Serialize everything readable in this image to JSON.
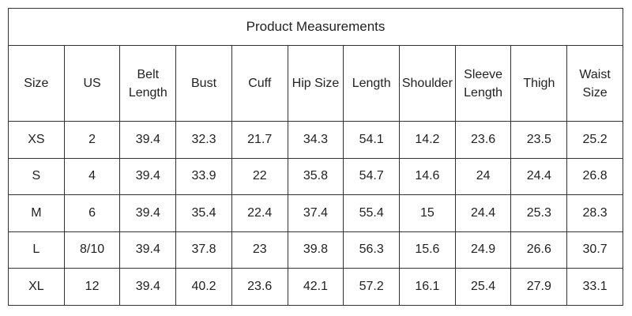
{
  "table": {
    "title": "Product Measurements",
    "columns": [
      "Size",
      "US",
      "Belt Length",
      "Bust",
      "Cuff",
      "Hip Size",
      "Length",
      "Shoulder",
      "Sleeve Length",
      "Thigh",
      "Waist Size"
    ],
    "rows": [
      [
        "XS",
        2,
        39.4,
        32.3,
        21.7,
        34.3,
        54.1,
        14.2,
        23.6,
        23.5,
        25.2
      ],
      [
        "S",
        4,
        39.4,
        33.9,
        22,
        35.8,
        54.7,
        14.6,
        24,
        24.4,
        26.8
      ],
      [
        "M",
        6,
        39.4,
        35.4,
        22.4,
        37.4,
        55.4,
        15,
        24.4,
        25.3,
        28.3
      ],
      [
        "L",
        "8/10",
        39.4,
        37.8,
        23,
        39.8,
        56.3,
        15.6,
        24.9,
        26.6,
        30.7
      ],
      [
        "XL",
        12,
        39.4,
        40.2,
        23.6,
        42.1,
        57.2,
        16.1,
        25.4,
        27.9,
        33.1
      ]
    ]
  }
}
